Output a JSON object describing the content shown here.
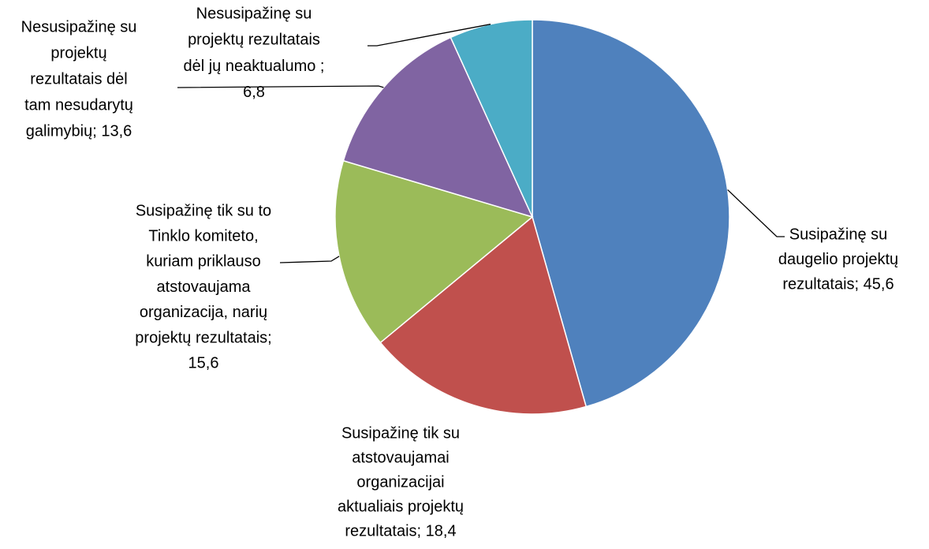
{
  "chart_data": {
    "type": "pie",
    "labels": [
      [
        "Susipažinę su",
        "daugelio projektų",
        "rezultatais; 45,6"
      ],
      [
        "Susipažinę tik su",
        "atstovaujamai",
        "organizacijai",
        "aktualiais projektų",
        "rezultatais; 18,4"
      ],
      [
        "Susipažinę tik su to",
        "Tinklo komiteto,",
        "kuriam priklauso",
        "atstovaujama",
        "organizacija, narių",
        "projektų rezultatais;",
        "15,6"
      ],
      [
        "Nesusipažinę su",
        "projektų",
        "rezultatais  dėl",
        "tam nesudarytų",
        "galimybių; 13,6"
      ],
      [
        "Nesusipažinę su",
        "projektų rezultatais",
        "dėl jų neaktualumo ;",
        "6,8"
      ]
    ],
    "values": [
      45.6,
      18.4,
      15.6,
      13.6,
      6.8
    ],
    "colors": [
      "#4f81bd",
      "#c0504d",
      "#9bbb59",
      "#8064a2",
      "#4bacc6"
    ]
  }
}
